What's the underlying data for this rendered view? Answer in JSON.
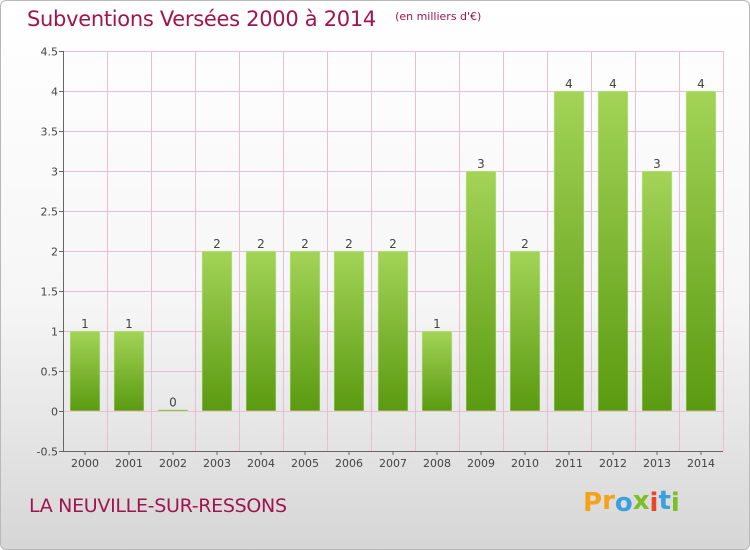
{
  "title": "Subventions Versées 2000 à 2014",
  "unit": "(en milliers d'€)",
  "place": "LA NEUVILLE-SUR-RESSONS",
  "logo": {
    "letters": [
      "P",
      "r",
      "o",
      "x",
      "i",
      "t",
      "i"
    ],
    "colors": [
      "#f5a21b",
      "#f5a21b",
      "#3aa0e0",
      "#7bbf27",
      "#e8452c",
      "#3aa0e0",
      "#7bbf27"
    ]
  },
  "colors": {
    "bar_light": "#9fd152",
    "bar_dark": "#5a9a10",
    "grid": "#e7bfd2",
    "title": "#a0154f"
  },
  "chart_data": {
    "type": "bar",
    "title": "Subventions Versées 2000 à 2014",
    "ylabel": "(en milliers d'€)",
    "categories": [
      "2000",
      "2001",
      "2002",
      "2003",
      "2004",
      "2005",
      "2006",
      "2007",
      "2008",
      "2009",
      "2010",
      "2011",
      "2012",
      "2013",
      "2014"
    ],
    "values": [
      1,
      1,
      0,
      2,
      2,
      2,
      2,
      2,
      1,
      3,
      2,
      4,
      4,
      3,
      4
    ],
    "data_labels": [
      "1",
      "1",
      "0",
      "2",
      "2",
      "2",
      "2",
      "2",
      "1",
      "3",
      "2",
      "4",
      "4",
      "3",
      "4"
    ],
    "yticks": [
      "-0.5",
      "0",
      "0.5",
      "1",
      "1.5",
      "2",
      "2.5",
      "3",
      "3.5",
      "4",
      "4.5"
    ],
    "ylim": [
      -0.5,
      4.5
    ],
    "grid": true
  }
}
